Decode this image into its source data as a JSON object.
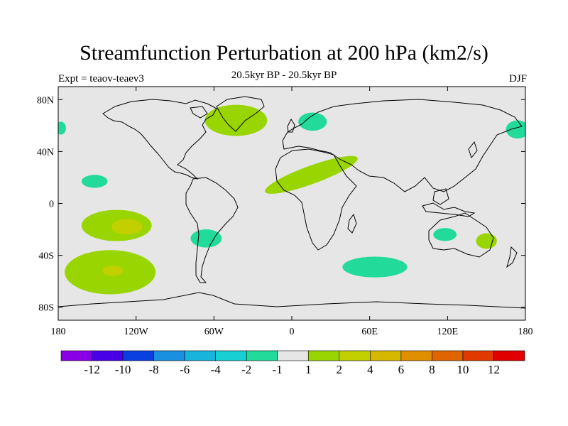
{
  "title": "Streamfunction Perturbation at 200 hPa (km2/s)",
  "subtitle_left": "Expt = teaov-teaev3",
  "subtitle_center": "20.5kyr BP - 20.5kyr BP",
  "subtitle_right": "DJF",
  "colors": {
    "land": "#e6e6e6",
    "coast": "#000000",
    "pos1": "#99d500",
    "pos2": "#c2cf00",
    "neg1": "#22db9a"
  },
  "chart_data": {
    "type": "map-contour",
    "variable": "Streamfunction Perturbation",
    "level": "200 hPa",
    "units": "km2/s",
    "lon_range": [
      -180,
      180
    ],
    "lat_range": [
      -90,
      90
    ],
    "x_ticks": [
      {
        "lon": -180,
        "label": "180"
      },
      {
        "lon": -120,
        "label": "120W"
      },
      {
        "lon": -60,
        "label": "60W"
      },
      {
        "lon": 0,
        "label": "0"
      },
      {
        "lon": 60,
        "label": "60E"
      },
      {
        "lon": 120,
        "label": "120E"
      },
      {
        "lon": 180,
        "label": "180"
      }
    ],
    "y_ticks": [
      {
        "lat": 80,
        "label": "80N"
      },
      {
        "lat": 40,
        "label": "40N"
      },
      {
        "lat": 0,
        "label": "0"
      },
      {
        "lat": -40,
        "label": "40S"
      },
      {
        "lat": -80,
        "label": "80S"
      }
    ],
    "colorbar": {
      "colors": [
        "#8a00e6",
        "#4a00e6",
        "#0a40e0",
        "#1a90e0",
        "#18b4dc",
        "#18cfd4",
        "#22db9a",
        "#e6e6e6",
        "#99d500",
        "#c2cf00",
        "#d6b800",
        "#e08f00",
        "#e06400",
        "#e03a00",
        "#e00000"
      ],
      "labels": [
        "-12",
        "-10",
        "-8",
        "-6",
        "-4",
        "-2",
        "-1",
        "1",
        "2",
        "4",
        "6",
        "8",
        "10",
        "12"
      ]
    },
    "anomalies": [
      {
        "name": "north-atlantic-positive",
        "lon": -43,
        "lat": 64,
        "rlon": 24,
        "rlat": 12,
        "level": "2"
      },
      {
        "name": "africa-arabia-positive",
        "lon": 15,
        "lat": 22,
        "rlon": 38,
        "rlat": 7,
        "level": "2",
        "rotate": -20
      },
      {
        "name": "south-pacific-positive",
        "lon": -135,
        "lat": -17,
        "rlon": 27,
        "rlat": 12,
        "level": "2"
      },
      {
        "name": "south-pacific-core",
        "lon": -127,
        "lat": -18,
        "rlon": 12,
        "rlat": 6,
        "level": "4"
      },
      {
        "name": "southern-ocean-positive",
        "lon": -140,
        "lat": -53,
        "rlon": 35,
        "rlat": 17,
        "level": "2"
      },
      {
        "name": "southern-ocean-core",
        "lon": -138,
        "lat": -52,
        "rlon": 8,
        "rlat": 4,
        "level": "4"
      },
      {
        "name": "australia-east-positive",
        "lon": 150,
        "lat": -29,
        "rlon": 8,
        "rlat": 6,
        "level": "2"
      },
      {
        "name": "europe-negative",
        "lon": 16,
        "lat": 63,
        "rlon": 11,
        "rlat": 7,
        "level": "-1"
      },
      {
        "name": "north-pacific-west-negative",
        "lon": 174,
        "lat": 57,
        "rlon": 9,
        "rlat": 7,
        "level": "-1"
      },
      {
        "name": "north-pacific-east-negative",
        "lon": -178,
        "lat": 58,
        "rlon": 4,
        "rlat": 5,
        "level": "-1"
      },
      {
        "name": "central-pacific-negative",
        "lon": -152,
        "lat": 17,
        "rlon": 10,
        "rlat": 5,
        "level": "-1"
      },
      {
        "name": "south-america-negative",
        "lon": -66,
        "lat": -27,
        "rlon": 12,
        "rlat": 7,
        "level": "-1"
      },
      {
        "name": "southern-indian-negative",
        "lon": 64,
        "lat": -49,
        "rlon": 25,
        "rlat": 8,
        "level": "-1"
      },
      {
        "name": "australia-west-negative",
        "lon": 118,
        "lat": -24,
        "rlon": 9,
        "rlat": 5,
        "level": "-1"
      }
    ]
  }
}
